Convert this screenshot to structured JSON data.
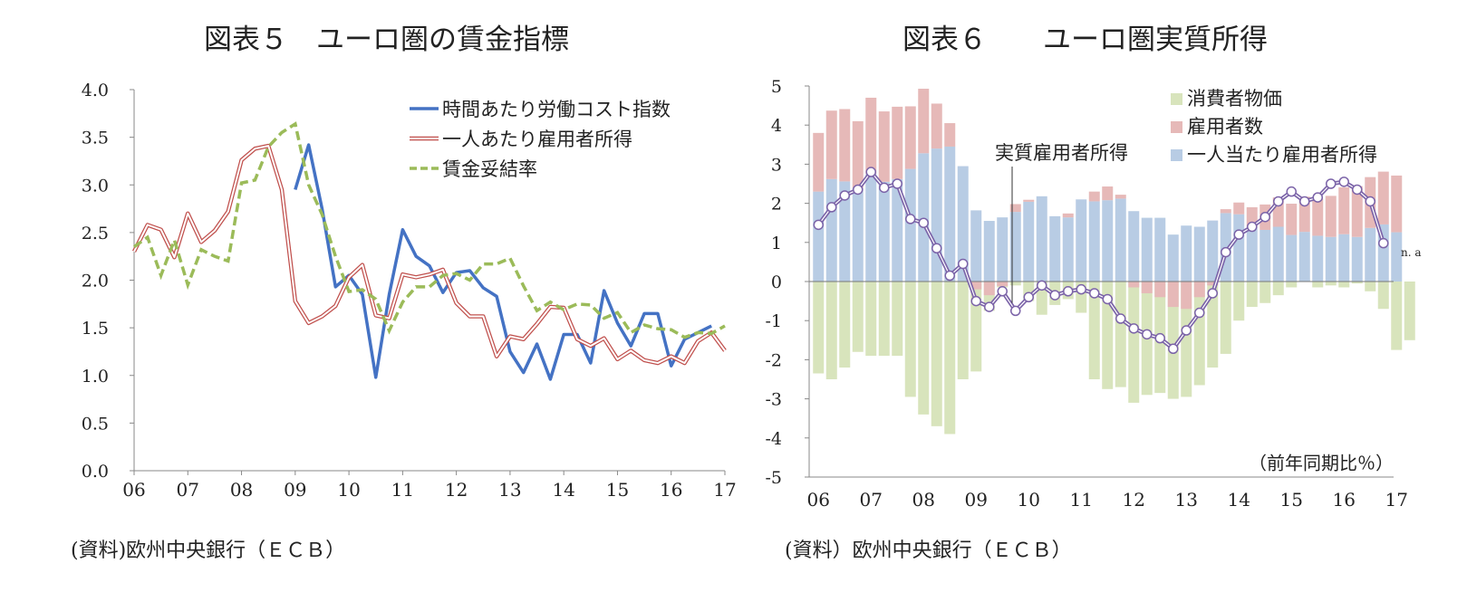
{
  "chart_data": [
    {
      "type": "line",
      "title": "図表５　ユーロ圏の賃金指標",
      "source": "(資料)欧州中央銀行（ＥＣＢ）",
      "x_ticks": [
        "06",
        "07",
        "08",
        "09",
        "10",
        "11",
        "12",
        "13",
        "14",
        "15",
        "16",
        "17"
      ],
      "y_ticks": [
        "4.0",
        "3.5",
        "3.0",
        "2.5",
        "2.0",
        "1.5",
        "1.0",
        "0.5",
        "0.0"
      ],
      "ylim": [
        0,
        4
      ],
      "xlim": [
        2006,
        2017
      ],
      "series": [
        {
          "name": "時間あたり労働コスト指数",
          "color": "#4472c4",
          "style": "solid",
          "x_start": 2009.0,
          "values": [
            2.95,
            3.42,
            2.75,
            1.93,
            2.05,
            1.85,
            0.98,
            1.85,
            2.53,
            2.25,
            2.15,
            1.87,
            2.08,
            2.1,
            1.92,
            1.83,
            1.25,
            1.03,
            1.33,
            0.96,
            1.43,
            1.43,
            1.13,
            1.89,
            1.55,
            1.31,
            1.65,
            1.65,
            1.1,
            1.38,
            1.45,
            1.52
          ]
        },
        {
          "name": "一人あたり雇用者所得",
          "color": "#c0504d",
          "style": "outline",
          "x_start": 2006.0,
          "values": [
            2.3,
            2.58,
            2.53,
            2.24,
            2.7,
            2.4,
            2.52,
            2.72,
            3.26,
            3.38,
            3.41,
            2.95,
            1.78,
            1.55,
            1.62,
            1.73,
            2.03,
            2.16,
            1.63,
            1.6,
            2.06,
            2.03,
            2.06,
            2.11,
            1.76,
            1.62,
            1.62,
            1.2,
            1.41,
            1.38,
            1.54,
            1.72,
            1.71,
            1.38,
            1.31,
            1.39,
            1.17,
            1.26,
            1.16,
            1.13,
            1.2,
            1.13,
            1.36,
            1.45,
            1.26
          ]
        },
        {
          "name": "賃金妥結率",
          "color": "#9bbb59",
          "style": "dashed",
          "x_start": 2006.0,
          "values": [
            2.35,
            2.45,
            2.05,
            2.42,
            1.95,
            2.32,
            2.25,
            2.2,
            3.02,
            3.05,
            3.4,
            3.55,
            3.64,
            3.0,
            2.69,
            2.25,
            1.88,
            1.9,
            1.8,
            1.47,
            1.77,
            1.93,
            1.93,
            2.05,
            2.07,
            2.0,
            2.17,
            2.17,
            2.23,
            1.94,
            1.68,
            1.77,
            1.69,
            1.75,
            1.74,
            1.6,
            1.66,
            1.45,
            1.53,
            1.49,
            1.48,
            1.4,
            1.45,
            1.44,
            1.52
          ]
        }
      ]
    },
    {
      "type": "bar",
      "title": "図表６　　ユーロ圏実質所得",
      "source": "(資料）欧州中央銀行（ＥＣＢ）",
      "x_ticks": [
        "06",
        "07",
        "08",
        "09",
        "10",
        "11",
        "12",
        "13",
        "14",
        "15",
        "16",
        "17"
      ],
      "y_ticks": [
        "5",
        "4",
        "3",
        "2",
        "1",
        "0",
        "-1",
        "-2",
        "-3",
        "-4",
        "-5"
      ],
      "ylim": [
        -5,
        5
      ],
      "unit_label": "（前年同期比％）",
      "annotation": "実質雇用者所得",
      "na_label": "n. a",
      "colors": {
        "cpi": "#d8e4bc",
        "employees": "#e6b9b8",
        "per_capita": "#b8cce4",
        "line": "#7b63a8"
      },
      "legend": [
        "消費者物価",
        "雇用者数",
        "一人当たり雇用者所得"
      ],
      "series": [
        {
          "name": "一人当たり雇用者所得",
          "values": [
            2.3,
            2.62,
            2.56,
            2.4,
            2.75,
            2.55,
            2.62,
            2.88,
            3.28,
            3.4,
            3.45,
            2.95,
            1.82,
            1.55,
            1.64,
            1.78,
            2.04,
            2.18,
            1.67,
            1.64,
            2.1,
            2.05,
            2.08,
            2.12,
            1.8,
            1.63,
            1.63,
            1.2,
            1.43,
            1.4,
            1.56,
            1.75,
            1.72,
            1.4,
            1.32,
            1.4,
            1.19,
            1.27,
            1.17,
            1.14,
            1.21,
            1.14,
            1.37,
            1.46,
            1.26
          ]
        },
        {
          "name": "雇用者数",
          "values": [
            1.5,
            1.75,
            1.85,
            1.7,
            1.95,
            1.8,
            1.85,
            1.6,
            1.65,
            1.15,
            0.6,
            0.0,
            -0.2,
            -0.35,
            -0.12,
            0.2,
            0.05,
            0.0,
            0.0,
            0.1,
            0.0,
            0.25,
            0.35,
            0.1,
            -0.15,
            -0.3,
            -0.4,
            -0.65,
            -0.7,
            -0.4,
            -0.1,
            0.1,
            0.3,
            0.5,
            0.65,
            0.75,
            0.8,
            0.9,
            0.95,
            1.05,
            1.2,
            1.3,
            1.3,
            1.35,
            1.45
          ]
        },
        {
          "name": "消費者物価",
          "values": [
            -2.35,
            -2.5,
            -2.2,
            -1.8,
            -1.9,
            -1.9,
            -1.9,
            -2.95,
            -3.4,
            -3.7,
            -3.9,
            -2.5,
            -2.3,
            -0.75,
            -0.15,
            -0.1,
            -0.5,
            -0.85,
            -0.6,
            -0.45,
            -0.8,
            -2.5,
            -2.75,
            -2.7,
            -3.1,
            -2.9,
            -2.85,
            -3.0,
            -2.95,
            -2.65,
            -2.2,
            -1.85,
            -1.0,
            -0.65,
            -0.55,
            -0.35,
            -0.15,
            0.05,
            -0.15,
            -0.1,
            -0.15,
            -0.05,
            -0.25,
            -0.7,
            -1.75,
            -1.5
          ]
        },
        {
          "name": "実質雇用者所得",
          "values": [
            1.45,
            1.9,
            2.2,
            2.35,
            2.8,
            2.4,
            2.5,
            1.6,
            1.5,
            0.85,
            0.15,
            0.45,
            -0.5,
            -0.65,
            -0.25,
            -0.75,
            -0.4,
            -0.1,
            -0.35,
            -0.25,
            -0.2,
            -0.3,
            -0.45,
            -0.95,
            -1.2,
            -1.35,
            -1.45,
            -1.72,
            -1.25,
            -0.8,
            -0.3,
            0.75,
            1.2,
            1.4,
            1.65,
            2.05,
            2.3,
            2.05,
            2.15,
            2.5,
            2.55,
            2.35,
            2.05,
            0.98
          ]
        }
      ]
    }
  ]
}
